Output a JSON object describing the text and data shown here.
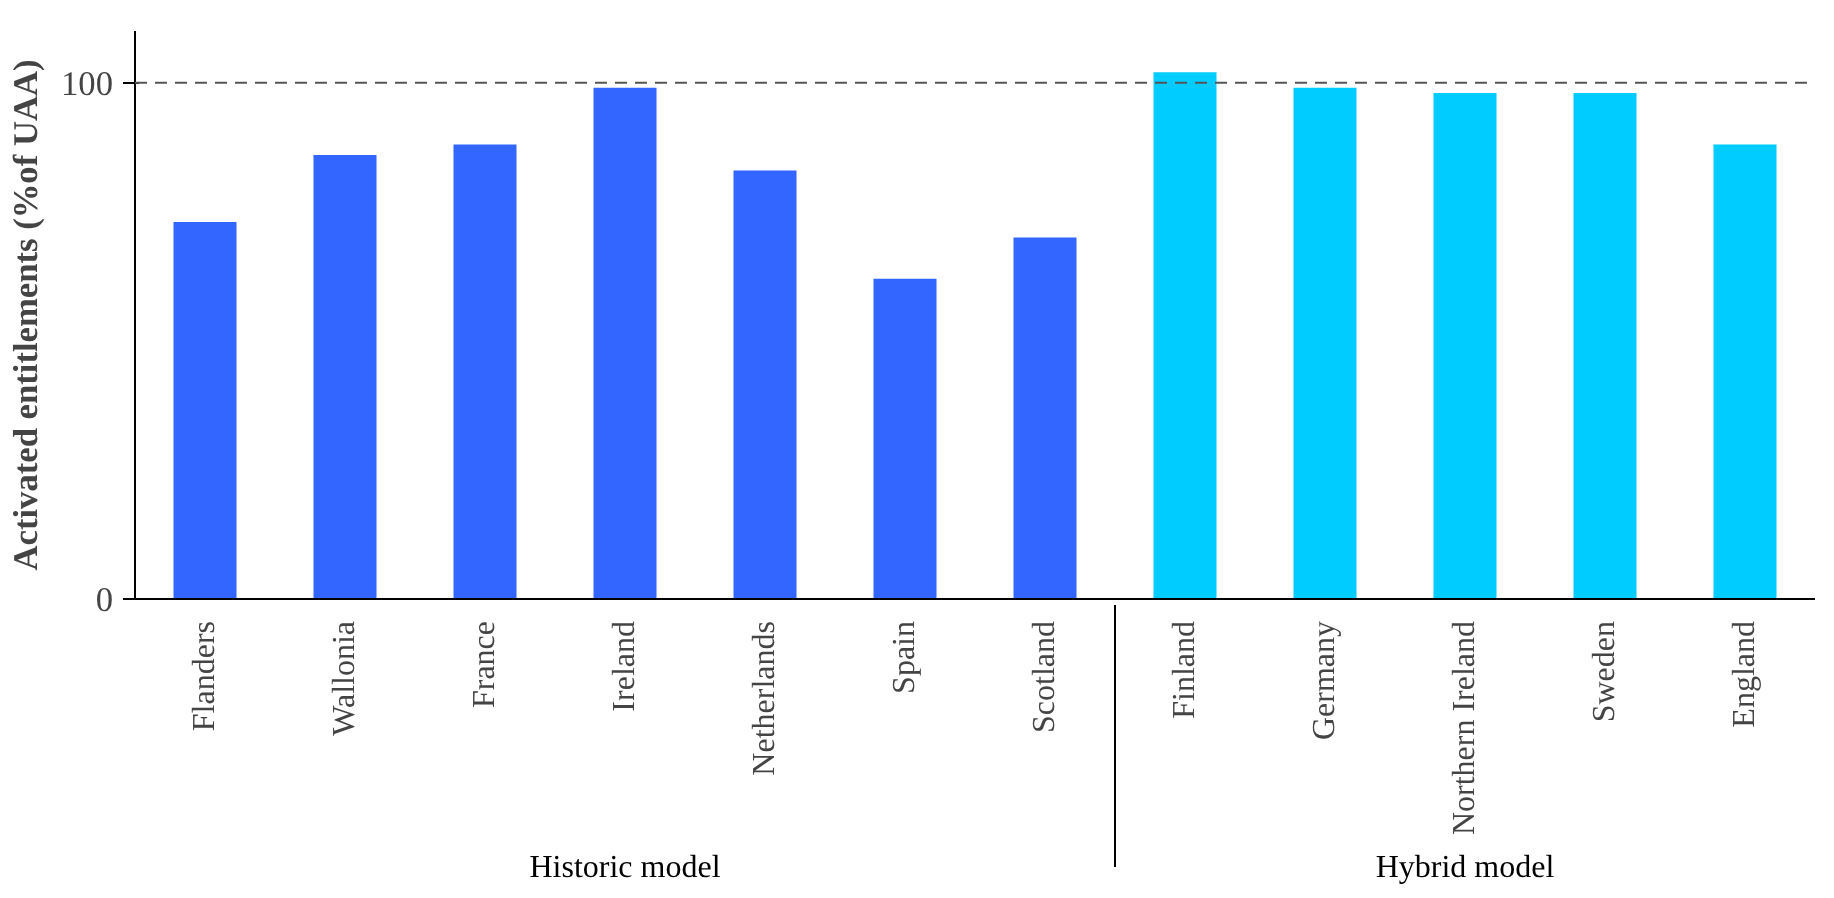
{
  "chart_data": {
    "type": "bar",
    "ylabel": "Activated entitlements (%of UAA)",
    "categories": [
      "Flanders",
      "Wallonia",
      "France",
      "Ireland",
      "Netherlands",
      "Spain",
      "Scotland",
      "Finland",
      "Germany",
      "Northern Ireland",
      "Sweden",
      "England"
    ],
    "series": [
      {
        "color": "#3366ff",
        "values": [
          73,
          86,
          88,
          99,
          83,
          62,
          70,
          null,
          null,
          null,
          null,
          null
        ]
      },
      {
        "color": "#00ccff",
        "values": [
          null,
          null,
          null,
          null,
          null,
          null,
          null,
          102,
          99,
          98,
          98,
          88
        ]
      }
    ],
    "ylim": [
      0,
      110
    ],
    "yticks": [
      0,
      100
    ],
    "ref_lines": [
      {
        "axis": "y",
        "value": 100,
        "line_style": "dashed",
        "color": "#555555"
      }
    ],
    "annotations": [
      "Historic model",
      "Hybrid model"
    ],
    "grid": false
  }
}
